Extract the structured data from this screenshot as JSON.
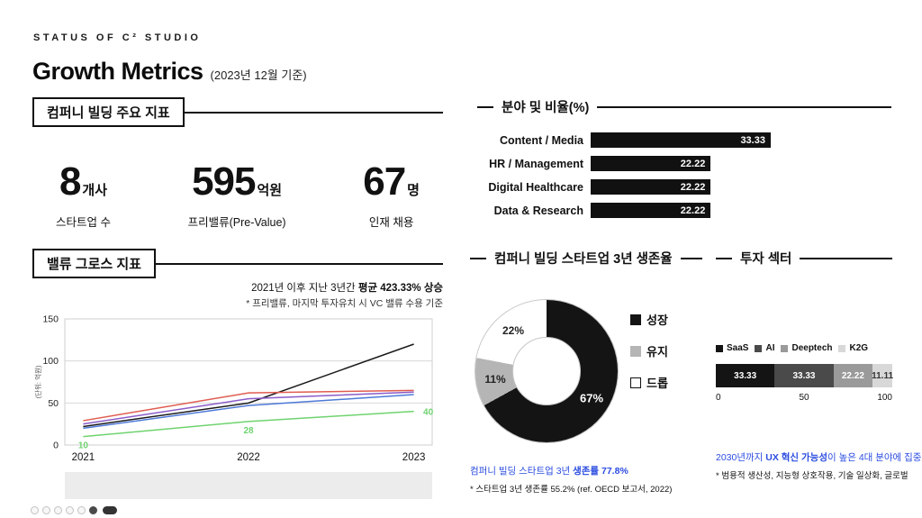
{
  "page": {
    "eyebrow": "STATUS OF C² STUDIO",
    "title": "Growth Metrics",
    "title_suffix": "(2023년 12월 기준)"
  },
  "colors": {
    "accent_blue": "#2b4ce0",
    "bar_black": "#111111"
  },
  "key_metrics": {
    "header": "컴퍼니 빌딩 주요 지표",
    "items": [
      {
        "value": "8",
        "unit": "개사",
        "label": "스타트업 수"
      },
      {
        "value": "595",
        "unit": "억원",
        "label": "프리밸류(Pre-Value)"
      },
      {
        "value": "67",
        "unit": "명",
        "label": "인재 채용"
      }
    ]
  },
  "sector_ratio": {
    "header": "분야 및 비율(%)"
  },
  "value_growth": {
    "header": "밸류 그로스 지표",
    "annotation_prefix": "2021년 이후 지난 3년간 ",
    "annotation_bold": "평균 423.33% 상승",
    "annotation_sub": "* 프리밸류, 마지막 투자유치 시 VC 밸류 수용 기준"
  },
  "survival": {
    "header": "컴퍼니 빌딩 스타트업 3년 생존율",
    "note_prefix": "컴퍼니 빌딩 스타트업 3년 ",
    "note_bold": "생존률 77.8%",
    "note_sub": "* 스타트업 3년 생존률 55.2% (ref. OECD 보고서, 2022)"
  },
  "invest": {
    "header": "투자 섹터",
    "note_prefix": "2030년까지 ",
    "note_bold": "UX 혁신 가능성",
    "note_suffix": "이 높은 4대 분야에 집중",
    "note_sub": "* 범용적 생산성, 지능형 상호작용, 기술 일상화, 글로벌"
  },
  "chart_data": [
    {
      "id": "sector_ratio",
      "type": "bar",
      "orientation": "horizontal",
      "categories": [
        "Content / Media",
        "HR / Management",
        "Digital Healthcare",
        "Data & Research"
      ],
      "values": [
        33.33,
        22.22,
        22.22,
        22.22
      ],
      "value_labels": [
        "33.33",
        "22.22",
        "22.22",
        "22.22"
      ],
      "bar_color": "#111111"
    },
    {
      "id": "value_growth",
      "type": "line",
      "x": [
        "2021",
        "2022",
        "2023"
      ],
      "ylabel": "(단위: 억원)",
      "ylim": [
        0,
        150
      ],
      "yticks": [
        0,
        50,
        100,
        150
      ],
      "grid": true,
      "series": [
        {
          "name": "series-black",
          "color": "#1a1a1a",
          "values": [
            22,
            50,
            120
          ]
        },
        {
          "name": "series-red",
          "color": "#e05c50",
          "values": [
            29,
            62,
            65
          ]
        },
        {
          "name": "series-purple",
          "color": "#8a5cc8",
          "values": [
            25,
            55,
            63
          ]
        },
        {
          "name": "series-blue",
          "color": "#4d79d8",
          "values": [
            20,
            47,
            60
          ]
        },
        {
          "name": "series-green",
          "color": "#6fd36f",
          "values": [
            10,
            28,
            40
          ],
          "point_labels": [
            "10",
            "28",
            "40"
          ]
        }
      ]
    },
    {
      "id": "survival_donut",
      "type": "pie",
      "donut": true,
      "slices": [
        {
          "label": "성장",
          "value": 67,
          "pct_label": "67%",
          "color": "#141414",
          "text_color": "#ffffff"
        },
        {
          "label": "유지",
          "value": 11,
          "pct_label": "11%",
          "color": "#b5b5b5",
          "text_color": "#222222"
        },
        {
          "label": "드롭",
          "value": 22,
          "pct_label": "22%",
          "color": "#ffffff",
          "text_color": "#222222"
        }
      ]
    },
    {
      "id": "invest_stacked",
      "type": "bar",
      "stacked": true,
      "xlim": [
        0,
        100
      ],
      "xticks": [
        "0",
        "50",
        "100"
      ],
      "segments": [
        {
          "label": "SaaS",
          "value": 33.33,
          "value_label": "33.33",
          "color": "#141414",
          "text_color": "#ffffff"
        },
        {
          "label": "AI",
          "value": 33.33,
          "value_label": "33.33",
          "color": "#4a4a4a",
          "text_color": "#ffffff"
        },
        {
          "label": "Deeptech",
          "value": 22.22,
          "value_label": "22.22",
          "color": "#9a9a9a",
          "text_color": "#ffffff"
        },
        {
          "label": "K2G",
          "value": 11.11,
          "value_label": "11.11",
          "color": "#d8d8d8",
          "text_color": "#333333"
        }
      ]
    }
  ],
  "taskbar": {
    "icons": [
      "app-circle",
      "app-circle",
      "app-circle",
      "app-circle",
      "app-circle",
      "app-circle-dark",
      "app-pill"
    ]
  }
}
